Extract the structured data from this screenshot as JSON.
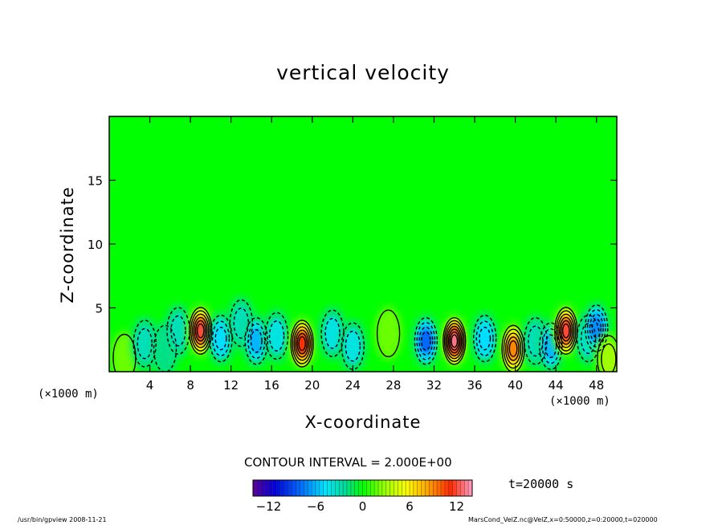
{
  "chart_data": {
    "type": "heatmap",
    "title": "vertical velocity",
    "xlabel": "X-coordinate",
    "ylabel": "Z-coordinate",
    "x_unit_left": "(×1000 m)",
    "x_unit_right": "(×1000 m)",
    "xlim": [
      0,
      50
    ],
    "ylim": [
      0,
      20
    ],
    "x_ticks": [
      4,
      8,
      12,
      16,
      20,
      24,
      28,
      32,
      36,
      40,
      44,
      48
    ],
    "y_ticks": [
      5,
      10,
      15
    ],
    "contour_interval_text": "CONTOUR INTERVAL = 2.000E+00",
    "contour_interval": 2.0,
    "time_label": "t=20000  s",
    "colorbar": {
      "vmin": -14,
      "vmax": 14,
      "ticks": [
        -12,
        -6,
        0,
        6,
        12
      ]
    },
    "cells": [
      {
        "x": 1.5,
        "z": 1.1,
        "w": 2
      },
      {
        "x": 3.5,
        "z": 2.2,
        "w": -3
      },
      {
        "x": 5.5,
        "z": 1.8,
        "w": -2
      },
      {
        "x": 6.8,
        "z": 3.2,
        "w": -3
      },
      {
        "x": 9.0,
        "z": 3.2,
        "w": 12
      },
      {
        "x": 11.0,
        "z": 2.6,
        "w": -5
      },
      {
        "x": 13.0,
        "z": 3.8,
        "w": -3
      },
      {
        "x": 14.5,
        "z": 2.4,
        "w": -6
      },
      {
        "x": 16.5,
        "z": 2.8,
        "w": -4
      },
      {
        "x": 19.0,
        "z": 2.2,
        "w": 11
      },
      {
        "x": 22.0,
        "z": 3.0,
        "w": -4
      },
      {
        "x": 24.0,
        "z": 2.0,
        "w": -4
      },
      {
        "x": 27.5,
        "z": 3.0,
        "w": 2
      },
      {
        "x": 31.2,
        "z": 2.4,
        "w": -8
      },
      {
        "x": 34.0,
        "z": 2.4,
        "w": 13
      },
      {
        "x": 37.0,
        "z": 2.6,
        "w": -5
      },
      {
        "x": 39.8,
        "z": 1.8,
        "w": 9
      },
      {
        "x": 42.0,
        "z": 2.4,
        "w": -3
      },
      {
        "x": 43.5,
        "z": 2.0,
        "w": -6
      },
      {
        "x": 45.0,
        "z": 3.2,
        "w": 12
      },
      {
        "x": 47.2,
        "z": 2.6,
        "w": -4
      },
      {
        "x": 48.0,
        "z": 3.4,
        "w": -7
      },
      {
        "x": 49.2,
        "z": 1.0,
        "w": 3
      }
    ]
  },
  "footer": {
    "left": "/usr/bin/gpview   2008-11-21",
    "right": "MarsCond_VelZ.nc@VelZ,x=0:50000,z=0:20000,t=020000"
  }
}
